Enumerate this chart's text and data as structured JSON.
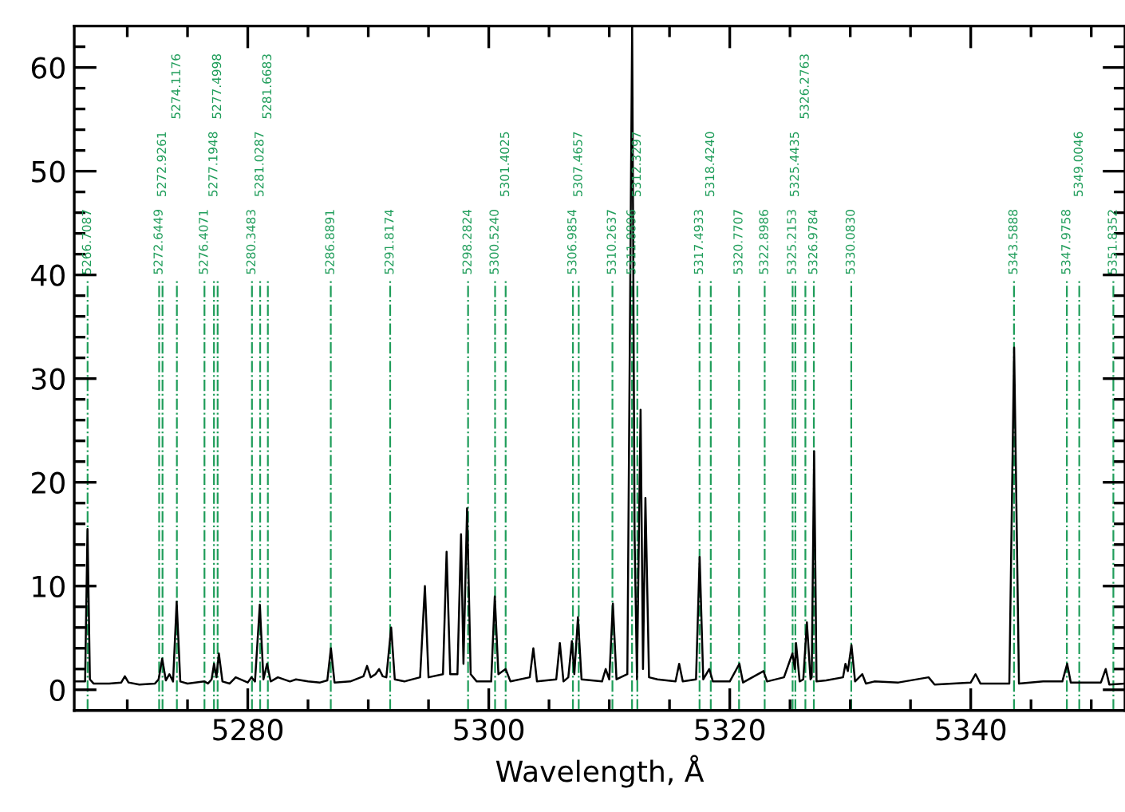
{
  "chart_data": {
    "type": "line",
    "xlabel": "Wavelength, Å",
    "xlim": [
      5265.6,
      5352.8
    ],
    "ylim": [
      -2,
      64
    ],
    "xticks": [
      {
        "value": 5270,
        "label": null
      },
      {
        "value": 5275,
        "label": null
      },
      5280,
      {
        "value": 5285,
        "label": null
      },
      {
        "value": 5290,
        "label": null
      },
      {
        "value": 5295,
        "label": null
      },
      5300,
      {
        "value": 5305,
        "label": null
      },
      {
        "value": 5310,
        "label": null
      },
      {
        "value": 5315,
        "label": null
      },
      5320,
      {
        "value": 5325,
        "label": null
      },
      {
        "value": 5330,
        "label": null
      },
      {
        "value": 5335,
        "label": null
      },
      5340,
      {
        "value": 5345,
        "label": null
      },
      {
        "value": 5350,
        "label": null
      }
    ],
    "yticks": [
      0,
      {
        "value": 2,
        "label": null
      },
      {
        "value": 4,
        "label": null
      },
      {
        "value": 6,
        "label": null
      },
      {
        "value": 8,
        "label": null
      },
      10,
      {
        "value": 12,
        "label": null
      },
      {
        "value": 14,
        "label": null
      },
      {
        "value": 16,
        "label": null
      },
      {
        "value": 18,
        "label": null
      },
      20,
      {
        "value": 22,
        "label": null
      },
      {
        "value": 24,
        "label": null
      },
      {
        "value": 26,
        "label": null
      },
      {
        "value": 28,
        "label": null
      },
      30,
      {
        "value": 32,
        "label": null
      },
      {
        "value": 34,
        "label": null
      },
      {
        "value": 36,
        "label": null
      },
      {
        "value": 38,
        "label": null
      },
      40,
      {
        "value": 42,
        "label": null
      },
      {
        "value": 44,
        "label": null
      },
      {
        "value": 46,
        "label": null
      },
      {
        "value": 48,
        "label": null
      },
      50,
      {
        "value": 52,
        "label": null
      },
      {
        "value": 54,
        "label": null
      },
      {
        "value": 56,
        "label": null
      },
      {
        "value": 58,
        "label": null
      },
      60,
      {
        "value": 62,
        "label": null
      }
    ],
    "marker": "none",
    "line_style": "solid",
    "x": [
      5265.6,
      5266.5,
      5266.7,
      5266.9,
      5267.2,
      5268.5,
      5269.5,
      5269.8,
      5270.1,
      5271,
      5272.3,
      5272.6,
      5272.9,
      5273.2,
      5273.5,
      5273.8,
      5274.1,
      5274.4,
      5275,
      5276.4,
      5276.7,
      5277.0,
      5277.2,
      5277.4,
      5277.6,
      5277.9,
      5278.5,
      5279,
      5280,
      5280.3,
      5280.6,
      5281.0,
      5281.3,
      5281.6,
      5281.9,
      5282.5,
      5283.5,
      5284,
      5285,
      5286,
      5286.6,
      5286.9,
      5287.2,
      5288.5,
      5289.6,
      5289.9,
      5290.2,
      5290.6,
      5290.9,
      5291.2,
      5291.5,
      5291.9,
      5292.2,
      5293,
      5294.3,
      5294.7,
      5295,
      5296.2,
      5296.5,
      5296.8,
      5297.4,
      5297.7,
      5297.9,
      5298.2,
      5298.5,
      5299,
      5300.2,
      5300.5,
      5300.8,
      5301.4,
      5301.8,
      5303.4,
      5303.7,
      5304,
      5305.6,
      5305.9,
      5306.2,
      5306.6,
      5306.9,
      5307.1,
      5307.4,
      5307.7,
      5309.4,
      5309.7,
      5310,
      5310.3,
      5310.6,
      5311.5,
      5311.9,
      5312.1,
      5312.3,
      5312.6,
      5312.8,
      5313.0,
      5313.3,
      5314,
      5315.5,
      5315.8,
      5316.1,
      5317.2,
      5317.5,
      5317.8,
      5318.3,
      5318.6,
      5320,
      5320.8,
      5321.1,
      5322.8,
      5323.1,
      5324.5,
      5325.2,
      5325.4,
      5325.5,
      5325.8,
      5326.1,
      5326.4,
      5326.7,
      5326.8,
      5327.0,
      5327.2,
      5328,
      5329.4,
      5329.6,
      5329.8,
      5330.1,
      5330.4,
      5331,
      5331.3,
      5332,
      5334,
      5336.5,
      5337,
      5340,
      5340.4,
      5340.8,
      5343.2,
      5343.6,
      5344,
      5346,
      5347.6,
      5348,
      5348.3,
      5350.8,
      5351.2,
      5351.5,
      5352.8
    ],
    "series": [
      {
        "color": "#000000",
        "values": [
          0.8,
          0.8,
          15.5,
          1.0,
          0.6,
          0.6,
          0.7,
          1.3,
          0.7,
          0.5,
          0.6,
          1.0,
          3.0,
          0.9,
          1.5,
          0.8,
          8.5,
          0.8,
          0.6,
          0.8,
          0.6,
          1.0,
          2.5,
          1.2,
          3.5,
          0.8,
          0.6,
          1.2,
          0.7,
          1.2,
          0.8,
          8.2,
          1.0,
          2.5,
          0.8,
          1.2,
          0.8,
          1.0,
          0.8,
          0.7,
          0.9,
          4.0,
          0.7,
          0.8,
          1.3,
          2.3,
          1.2,
          1.5,
          2.0,
          1.3,
          1.2,
          6.0,
          1.0,
          0.8,
          1.2,
          10.0,
          1.2,
          1.5,
          13.3,
          1.5,
          1.5,
          15.0,
          2.5,
          17.5,
          1.5,
          0.8,
          0.8,
          9.0,
          1.5,
          2.0,
          0.8,
          1.2,
          4.0,
          0.8,
          1.0,
          4.5,
          0.8,
          1.2,
          4.7,
          1.5,
          7.0,
          1.0,
          0.8,
          2.0,
          1.0,
          8.3,
          1.0,
          1.5,
          64,
          15.0,
          1.0,
          27.0,
          2.0,
          18.5,
          1.2,
          1.0,
          0.8,
          2.5,
          0.8,
          1.0,
          12.8,
          1.0,
          2.0,
          0.8,
          0.8,
          2.5,
          0.7,
          1.8,
          0.8,
          1.2,
          3.5,
          2.0,
          4.5,
          0.8,
          1.0,
          6.5,
          1.0,
          1.2,
          23.0,
          0.8,
          0.9,
          1.2,
          2.5,
          1.8,
          4.3,
          0.8,
          1.5,
          0.6,
          0.8,
          0.7,
          1.2,
          0.5,
          0.7,
          1.5,
          0.6,
          0.6,
          33.0,
          0.6,
          0.8,
          0.8,
          2.5,
          0.7,
          0.7,
          2.0,
          0.5,
          0.6
        ]
      }
    ],
    "ref_lines": [
      {
        "axis": "x",
        "value": 5266.7087,
        "label": "5266.7087",
        "color": "#1f9d5a",
        "line_style": "dashdot"
      },
      {
        "axis": "x",
        "value": 5272.6449,
        "label": "5272.6449",
        "color": "#1f9d5a",
        "line_style": "dashdot"
      },
      {
        "axis": "x",
        "value": 5272.9261,
        "label": "5272.9261",
        "color": "#1f9d5a",
        "line_style": "dashdot"
      },
      {
        "axis": "x",
        "value": 5274.1176,
        "label": "5274.1176",
        "color": "#1f9d5a",
        "line_style": "dashdot"
      },
      {
        "axis": "x",
        "value": 5276.4071,
        "label": "5276.4071",
        "color": "#1f9d5a",
        "line_style": "dashdot"
      },
      {
        "axis": "x",
        "value": 5277.1948,
        "label": "5277.1948",
        "color": "#1f9d5a",
        "line_style": "dashdot"
      },
      {
        "axis": "x",
        "value": 5277.4998,
        "label": "5277.4998",
        "color": "#1f9d5a",
        "line_style": "dashdot"
      },
      {
        "axis": "x",
        "value": 5280.3483,
        "label": "5280.3483",
        "color": "#1f9d5a",
        "line_style": "dashdot"
      },
      {
        "axis": "x",
        "value": 5281.0287,
        "label": "5281.0287",
        "color": "#1f9d5a",
        "line_style": "dashdot"
      },
      {
        "axis": "x",
        "value": 5281.6683,
        "label": "5281.6683",
        "color": "#1f9d5a",
        "line_style": "dashdot"
      },
      {
        "axis": "x",
        "value": 5286.8891,
        "label": "5286.8891",
        "color": "#1f9d5a",
        "line_style": "dashdot"
      },
      {
        "axis": "x",
        "value": 5291.8174,
        "label": "5291.8174",
        "color": "#1f9d5a",
        "line_style": "dashdot"
      },
      {
        "axis": "x",
        "value": 5298.2824,
        "label": "5298.2824",
        "color": "#1f9d5a",
        "line_style": "dashdot"
      },
      {
        "axis": "x",
        "value": 5300.524,
        "label": "5300.5240",
        "color": "#1f9d5a",
        "line_style": "dashdot"
      },
      {
        "axis": "x",
        "value": 5301.4025,
        "label": "5301.4025",
        "color": "#1f9d5a",
        "line_style": "dashdot"
      },
      {
        "axis": "x",
        "value": 5306.9854,
        "label": "5306.9854",
        "color": "#1f9d5a",
        "line_style": "dashdot"
      },
      {
        "axis": "x",
        "value": 5307.4657,
        "label": "5307.4657",
        "color": "#1f9d5a",
        "line_style": "dashdot"
      },
      {
        "axis": "x",
        "value": 5310.2637,
        "label": "5310.2637",
        "color": "#1f9d5a",
        "line_style": "dashdot"
      },
      {
        "axis": "x",
        "value": 5311.8896,
        "label": "5311.8896",
        "color": "#1f9d5a",
        "line_style": "dashdot"
      },
      {
        "axis": "x",
        "value": 5312.3297,
        "label": "5312.3297",
        "color": "#1f9d5a",
        "line_style": "dashdot"
      },
      {
        "axis": "x",
        "value": 5317.4933,
        "label": "5317.4933",
        "color": "#1f9d5a",
        "line_style": "dashdot"
      },
      {
        "axis": "x",
        "value": 5318.424,
        "label": "5318.4240",
        "color": "#1f9d5a",
        "line_style": "dashdot"
      },
      {
        "axis": "x",
        "value": 5320.7707,
        "label": "5320.7707",
        "color": "#1f9d5a",
        "line_style": "dashdot"
      },
      {
        "axis": "x",
        "value": 5322.8986,
        "label": "5322.8986",
        "color": "#1f9d5a",
        "line_style": "dashdot"
      },
      {
        "axis": "x",
        "value": 5325.2153,
        "label": "5325.2153",
        "color": "#1f9d5a",
        "line_style": "dashdot"
      },
      {
        "axis": "x",
        "value": 5325.4435,
        "label": "5325.4435",
        "color": "#1f9d5a",
        "line_style": "dashdot"
      },
      {
        "axis": "x",
        "value": 5326.2763,
        "label": "5326.2763",
        "color": "#1f9d5a",
        "line_style": "dashdot"
      },
      {
        "axis": "x",
        "value": 5326.9784,
        "label": "5326.9784",
        "color": "#1f9d5a",
        "line_style": "dashdot"
      },
      {
        "axis": "x",
        "value": 5330.083,
        "label": "5330.0830",
        "color": "#1f9d5a",
        "line_style": "dashdot"
      },
      {
        "axis": "x",
        "value": 5343.5888,
        "label": "5343.5888",
        "color": "#1f9d5a",
        "line_style": "dashdot"
      },
      {
        "axis": "x",
        "value": 5347.9758,
        "label": "5347.9758",
        "color": "#1f9d5a",
        "line_style": "dashdot"
      },
      {
        "axis": "x",
        "value": 5349.0046,
        "label": "5349.0046",
        "color": "#1f9d5a",
        "line_style": "dashdot"
      },
      {
        "axis": "x",
        "value": 5351.8352,
        "label": "5351.8352",
        "color": "#1f9d5a",
        "line_style": "dashdot"
      }
    ]
  }
}
